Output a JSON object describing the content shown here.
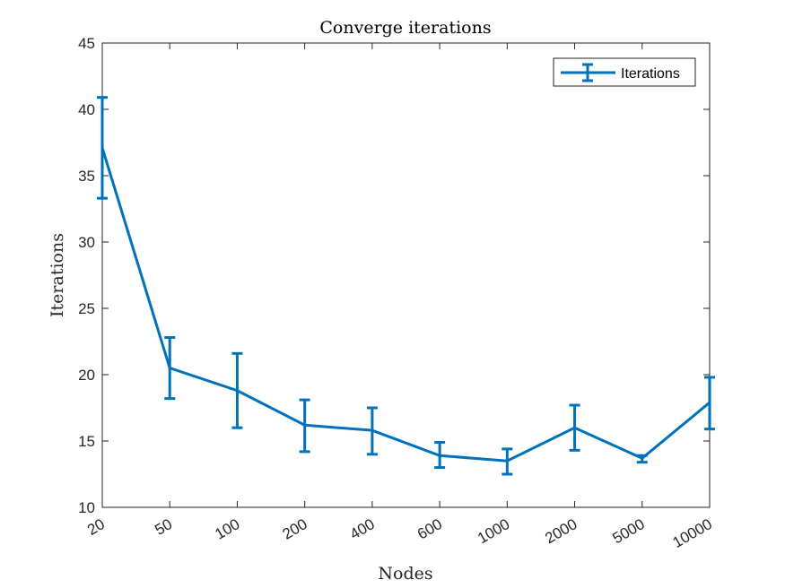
{
  "chart_data": {
    "type": "line",
    "title": "Converge iterations",
    "xlabel": "Nodes",
    "ylabel": "Iterations",
    "categories": [
      "20",
      "50",
      "100",
      "200",
      "400",
      "600",
      "1000",
      "2000",
      "5000",
      "10000"
    ],
    "ylim": [
      10,
      45
    ],
    "yticks": [
      10,
      15,
      20,
      25,
      30,
      35,
      40,
      45
    ],
    "grid": false,
    "legend_position": "top-right",
    "series": [
      {
        "name": "Iterations",
        "color": "#0072BD",
        "values": [
          37.1,
          20.5,
          18.8,
          16.2,
          15.8,
          13.9,
          13.5,
          16.0,
          13.7,
          17.9
        ],
        "err_low": [
          33.3,
          18.2,
          16.0,
          14.2,
          14.0,
          13.0,
          12.5,
          14.3,
          13.4,
          15.9
        ],
        "err_high": [
          40.9,
          22.8,
          21.6,
          18.1,
          17.5,
          14.9,
          14.4,
          17.7,
          13.9,
          19.8
        ]
      }
    ]
  }
}
